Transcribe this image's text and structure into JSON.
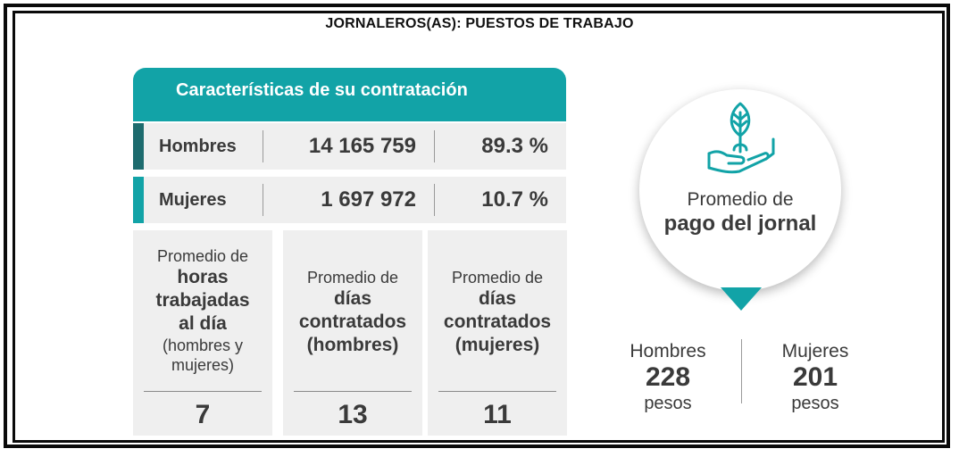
{
  "title": "JORNALEROS(AS): PUESTOS DE TRABAJO",
  "card": {
    "header": "Características de su contratación",
    "rows": [
      {
        "label": "Hombres",
        "count": "14 165 759",
        "percent": "89.3 %",
        "accent_color": "#1d6b6e"
      },
      {
        "label": "Mujeres",
        "count": "1 697 972",
        "percent": "10.7 %",
        "accent_color": "#12a3a7"
      }
    ]
  },
  "stats": [
    {
      "pre": "Promedio de",
      "bold": "horas trabajadas al día",
      "note": "(hombres y mujeres)",
      "value": "7"
    },
    {
      "pre": "Promedio de",
      "bold": "días contratados",
      "note": "(hombres)",
      "value": "13"
    },
    {
      "pre": "Promedio de",
      "bold": "días contratados",
      "note": "(mujeres)",
      "value": "11"
    }
  ],
  "pay": {
    "title_line1": "Promedio de",
    "title_line2": "pago del jornal",
    "icon": "hand-plant-icon",
    "hombres": {
      "label": "Hombres",
      "value": "228",
      "unit": "pesos"
    },
    "mujeres": {
      "label": "Mujeres",
      "value": "201",
      "unit": "pesos"
    }
  },
  "colors": {
    "accent": "#12a3a7",
    "dark_accent": "#1d6b6e",
    "panel": "#efefef",
    "text": "#3a3a3a"
  }
}
